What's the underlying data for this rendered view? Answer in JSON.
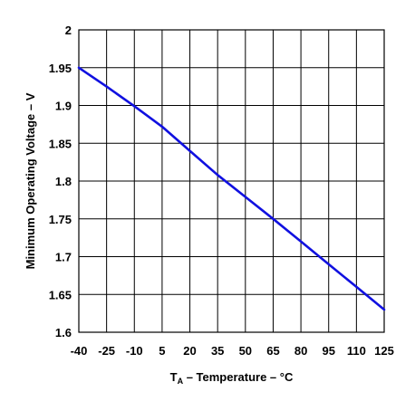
{
  "chart_data": {
    "type": "line",
    "xlabel": {
      "prefix": "T",
      "subscript": "A",
      "rest": " – Temperature – °C"
    },
    "ylabel": "Minimum Operating Voltage – V",
    "xlim": [
      -40,
      125
    ],
    "ylim": [
      1.6,
      2
    ],
    "x_ticks": [
      -40,
      -25,
      -10,
      5,
      20,
      35,
      50,
      65,
      80,
      95,
      110,
      125
    ],
    "y_ticks": [
      1.6,
      1.65,
      1.7,
      1.75,
      1.8,
      1.85,
      1.9,
      1.95,
      2
    ],
    "x_tick_labels": [
      "-40",
      "-25",
      "-10",
      "5",
      "20",
      "35",
      "50",
      "65",
      "80",
      "95",
      "110",
      "125"
    ],
    "y_tick_labels": [
      "1.6",
      "1.65",
      "1.7",
      "1.75",
      "1.8",
      "1.85",
      "1.9",
      "1.95",
      "2"
    ],
    "grid": true,
    "line_color": "#1010e0",
    "series": [
      {
        "x": [
          -40,
          -25,
          -10,
          5,
          20,
          35,
          50,
          65,
          80,
          95,
          110,
          125
        ],
        "values": [
          1.95,
          1.925,
          1.899,
          1.872,
          1.84,
          1.808,
          1.779,
          1.75,
          1.72,
          1.69,
          1.66,
          1.63
        ]
      }
    ]
  }
}
